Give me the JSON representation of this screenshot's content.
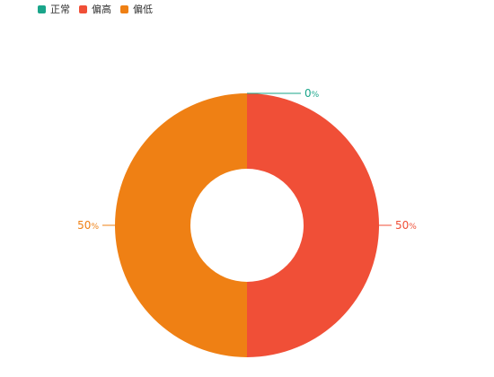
{
  "legend": {
    "items": [
      {
        "label": "正常",
        "color": "#1aa58a"
      },
      {
        "label": "偏高",
        "color": "#f04f37"
      },
      {
        "label": "偏低",
        "color": "#ef8014"
      }
    ]
  },
  "chart_data": {
    "type": "pie",
    "variant": "donut",
    "legend_position": "top-left",
    "categories": [
      "正常",
      "偏高",
      "偏低"
    ],
    "values": [
      0,
      50,
      50
    ],
    "colors": [
      "#1aa58a",
      "#f04f37",
      "#ef8014"
    ],
    "labels": {
      "正常": {
        "value": "0",
        "unit": "%"
      },
      "偏高": {
        "value": "50",
        "unit": "%"
      },
      "偏低": {
        "value": "50",
        "unit": "%"
      }
    }
  }
}
